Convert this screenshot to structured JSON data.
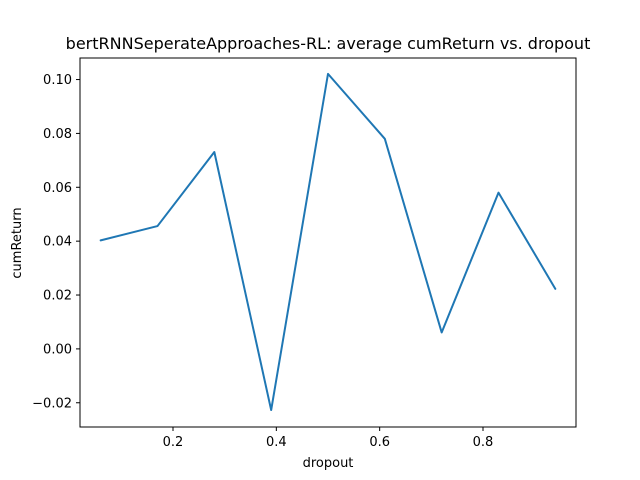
{
  "chart_data": {
    "type": "line",
    "title": "bertRNNSeperateApproaches-RL: average cumReturn vs. dropout",
    "xlabel": "dropout",
    "ylabel": "cumReturn",
    "xlim": [
      0.02,
      0.98
    ],
    "ylim": [
      -0.029,
      0.108
    ],
    "xticks": [
      0.2,
      0.4,
      0.6,
      0.8
    ],
    "xtick_labels": [
      "0.2",
      "0.4",
      "0.6",
      "0.8"
    ],
    "yticks": [
      -0.02,
      0.0,
      0.02,
      0.04,
      0.06,
      0.08,
      0.1
    ],
    "ytick_labels": [
      "−0.02",
      "0.00",
      "0.02",
      "0.04",
      "0.06",
      "0.08",
      "0.10"
    ],
    "grid": false,
    "series": [
      {
        "color": "#1f77b4",
        "x": [
          0.06,
          0.17,
          0.28,
          0.39,
          0.5,
          0.61,
          0.72,
          0.83,
          0.94
        ],
        "y": [
          0.0403,
          0.0456,
          0.0731,
          -0.0227,
          0.1021,
          0.078,
          0.0061,
          0.058,
          0.0223
        ]
      }
    ]
  }
}
